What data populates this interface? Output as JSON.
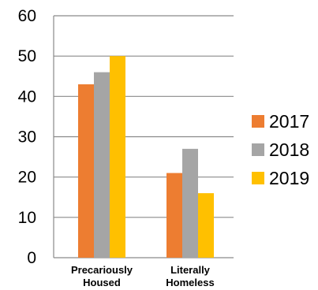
{
  "chart_data": {
    "type": "bar",
    "categories": [
      [
        "Precariously",
        "Housed"
      ],
      [
        "Literally",
        "Homeless"
      ]
    ],
    "series": [
      {
        "name": "2017",
        "values": [
          43,
          21
        ],
        "color": "#ED7D31"
      },
      {
        "name": "2018",
        "values": [
          46,
          27
        ],
        "color": "#A5A5A5"
      },
      {
        "name": "2019",
        "values": [
          50,
          16
        ],
        "color": "#FFC000"
      }
    ],
    "ylim": [
      0,
      60
    ],
    "yticks": [
      "0",
      "10",
      "20",
      "30",
      "40",
      "50",
      "60"
    ],
    "grid": true,
    "legend_position": "right"
  }
}
